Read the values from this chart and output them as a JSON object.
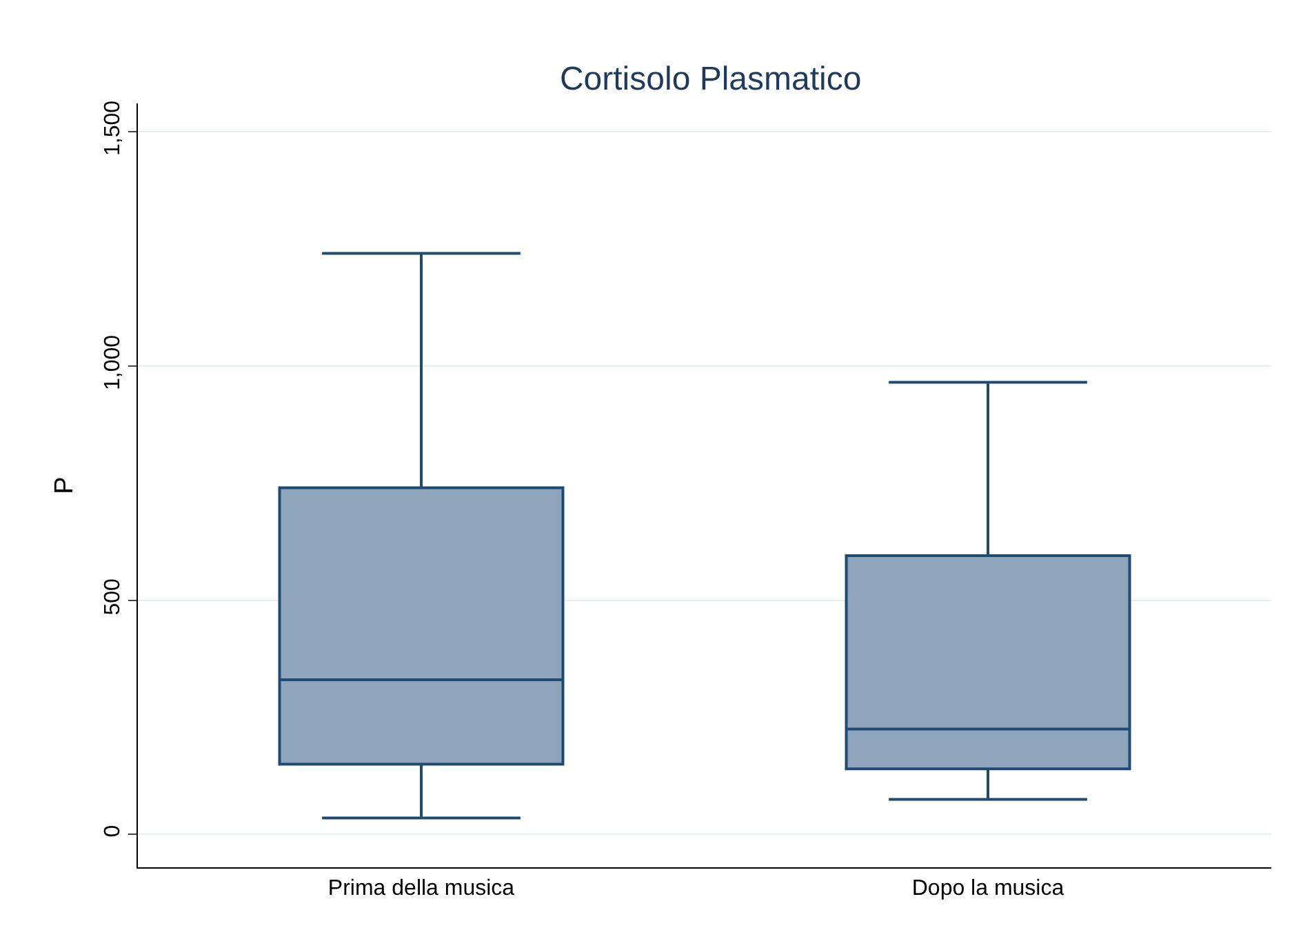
{
  "chart_data": {
    "type": "box",
    "title": "Cortisolo Plasmatico",
    "ylabel": "P",
    "categories": [
      "Prima della musica",
      "Dopo la musica"
    ],
    "boxes": [
      {
        "low": 35,
        "q1": 150,
        "median": 330,
        "q3": 740,
        "high": 1240
      },
      {
        "low": 75,
        "q1": 140,
        "median": 225,
        "q3": 595,
        "high": 965
      }
    ],
    "color": "#8ea4ba",
    "ylim": [
      -70,
      1560
    ],
    "yticks": [
      0,
      500,
      {
        "value": 1000,
        "label": "1,000"
      },
      {
        "value": 1500,
        "label": "1,500"
      }
    ],
    "grid": "y"
  }
}
